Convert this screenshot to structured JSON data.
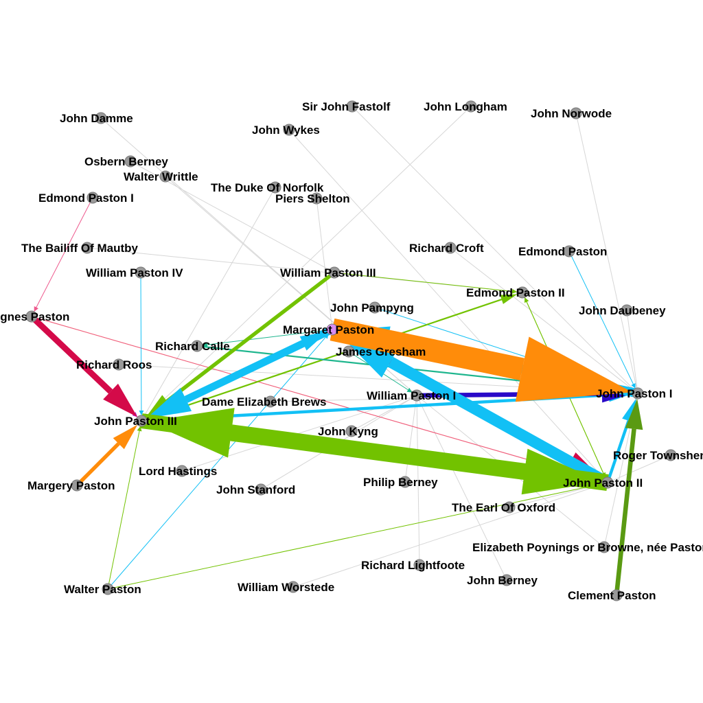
{
  "colors": {
    "node_fill": "#999999",
    "node_stroke": "#777777",
    "label": "#000000",
    "faint_edge": "#d6d6d6",
    "orange": "#ff8c0a",
    "sky": "#12c0f5",
    "green": "#72c200",
    "dark_green": "#5a9a12",
    "crimson": "#d40a49",
    "navy": "#2a0ac8",
    "teal": "#1fb68e",
    "pink": "#ee5a8e",
    "purple": "#b026d8",
    "violet_node": "#d98cf2"
  },
  "nodes": [
    {
      "id": "john_damme",
      "label": "John Damme"
    },
    {
      "id": "osbern_berney",
      "label": "Osbern Berney"
    },
    {
      "id": "walter_writtle",
      "label": "Walter Writtle"
    },
    {
      "id": "duke_norfolk",
      "label": "The Duke Of Norfolk"
    },
    {
      "id": "edmond_paston_i",
      "label": "Edmond Paston I"
    },
    {
      "id": "piers_shelton",
      "label": "Piers Shelton"
    },
    {
      "id": "sir_john_fastolf",
      "label": "Sir John Fastolf"
    },
    {
      "id": "john_longham",
      "label": "John Longham"
    },
    {
      "id": "john_norwode",
      "label": "John Norwode"
    },
    {
      "id": "john_wykes",
      "label": "John Wykes"
    },
    {
      "id": "bailiff_mautby",
      "label": "The Bailiff Of Mautby"
    },
    {
      "id": "richard_croft",
      "label": "Richard Croft"
    },
    {
      "id": "edmond_paston",
      "label": "Edmond Paston"
    },
    {
      "id": "william_paston_iv",
      "label": "William Paston IV"
    },
    {
      "id": "william_paston_iii",
      "label": "William Paston III"
    },
    {
      "id": "edmond_paston_ii",
      "label": "Edmond Paston II"
    },
    {
      "id": "agnes_paston",
      "label": "Agnes Paston"
    },
    {
      "id": "john_pampyng",
      "label": "John Pampyng"
    },
    {
      "id": "john_daubeney",
      "label": "John Daubeney"
    },
    {
      "id": "margaret_paston",
      "label": "Margaret Paston"
    },
    {
      "id": "richard_calle",
      "label": "Richard Calle"
    },
    {
      "id": "james_gresham",
      "label": "James Gresham"
    },
    {
      "id": "richard_roos",
      "label": "Richard Roos"
    },
    {
      "id": "john_paston_i",
      "label": "John Paston I"
    },
    {
      "id": "william_paston_i",
      "label": "William Paston I"
    },
    {
      "id": "dame_elizabeth_brews",
      "label": "Dame Elizabeth Brews"
    },
    {
      "id": "john_paston_iii",
      "label": "John Paston III"
    },
    {
      "id": "john_kyng",
      "label": "John Kyng"
    },
    {
      "id": "roger_townshend",
      "label": "Roger Townshend"
    },
    {
      "id": "lord_hastings",
      "label": "Lord Hastings"
    },
    {
      "id": "margery_paston",
      "label": "Margery Paston"
    },
    {
      "id": "philip_berney",
      "label": "Philip Berney"
    },
    {
      "id": "john_stanford",
      "label": "John Stanford"
    },
    {
      "id": "john_paston_ii",
      "label": "John Paston II"
    },
    {
      "id": "earl_oxford",
      "label": "The Earl Of Oxford"
    },
    {
      "id": "elizabeth_poynings",
      "label": "Elizabeth Poynings or Browne, née Paston"
    },
    {
      "id": "richard_lightfoote",
      "label": "Richard Lightfoote"
    },
    {
      "id": "john_berney",
      "label": "John Berney"
    },
    {
      "id": "walter_paston",
      "label": "Walter Paston"
    },
    {
      "id": "william_worstede",
      "label": "William Worstede"
    },
    {
      "id": "clement_paston",
      "label": "Clement Paston"
    }
  ],
  "edges": [
    {
      "from": "john_damme",
      "to": "william_paston_i",
      "color": "faint_edge",
      "weight": 1
    },
    {
      "from": "osbern_berney",
      "to": "william_paston_iii",
      "color": "faint_edge",
      "weight": 1
    },
    {
      "from": "walter_writtle",
      "to": "william_paston_i",
      "color": "faint_edge",
      "weight": 1
    },
    {
      "from": "duke_norfolk",
      "to": "john_paston_iii",
      "color": "faint_edge",
      "weight": 1
    },
    {
      "from": "piers_shelton",
      "to": "margaret_paston",
      "color": "faint_edge",
      "weight": 1
    },
    {
      "from": "sir_john_fastolf",
      "to": "john_paston_i",
      "color": "faint_edge",
      "weight": 1
    },
    {
      "from": "john_longham",
      "to": "john_paston_iii",
      "color": "faint_edge",
      "weight": 1
    },
    {
      "from": "john_norwode",
      "to": "john_paston_i",
      "color": "faint_edge",
      "weight": 1
    },
    {
      "from": "john_wykes",
      "to": "john_paston_ii",
      "color": "faint_edge",
      "weight": 1
    },
    {
      "from": "bailiff_mautby",
      "to": "edmond_paston_ii",
      "color": "faint_edge",
      "weight": 1
    },
    {
      "from": "richard_croft",
      "to": "john_paston_i",
      "color": "faint_edge",
      "weight": 1
    },
    {
      "from": "edmond_paston",
      "to": "john_paston_i",
      "color": "sky",
      "weight": 1
    },
    {
      "from": "john_daubeney",
      "to": "john_paston_i",
      "color": "faint_edge",
      "weight": 1
    },
    {
      "from": "richard_roos",
      "to": "john_paston_i",
      "color": "faint_edge",
      "weight": 1
    },
    {
      "from": "john_kyng",
      "to": "william_paston_i",
      "color": "faint_edge",
      "weight": 1
    },
    {
      "from": "roger_townshend",
      "to": "john_paston_ii",
      "color": "faint_edge",
      "weight": 1
    },
    {
      "from": "lord_hastings",
      "to": "william_paston_i",
      "color": "faint_edge",
      "weight": 1
    },
    {
      "from": "john_stanford",
      "to": "william_paston_i",
      "color": "faint_edge",
      "weight": 1
    },
    {
      "from": "philip_berney",
      "to": "william_paston_i",
      "color": "faint_edge",
      "weight": 1
    },
    {
      "from": "richard_lightfoote",
      "to": "william_paston_i",
      "color": "faint_edge",
      "weight": 1
    },
    {
      "from": "john_berney",
      "to": "william_paston_i",
      "color": "faint_edge",
      "weight": 1
    },
    {
      "from": "william_worstede",
      "to": "john_paston_ii",
      "color": "faint_edge",
      "weight": 1
    },
    {
      "from": "elizabeth_poynings",
      "to": "william_paston_i",
      "color": "faint_edge",
      "weight": 1
    },
    {
      "from": "elizabeth_poynings",
      "to": "john_paston_i",
      "color": "faint_edge",
      "weight": 1
    },
    {
      "from": "dame_elizabeth_brews",
      "to": "john_paston_i",
      "color": "faint_edge",
      "weight": 1
    },
    {
      "from": "edmond_paston_i",
      "to": "agnes_paston",
      "color": "pink",
      "weight": 1
    },
    {
      "from": "agnes_paston",
      "to": "john_paston_iii",
      "color": "purple",
      "weight": 1
    },
    {
      "from": "agnes_paston",
      "to": "john_paston_ii",
      "color": "orange",
      "weight": 1
    },
    {
      "from": "agnes_paston",
      "to": "john_paston_ii",
      "color": "pink",
      "weight": 1
    },
    {
      "from": "william_paston_iv",
      "to": "john_paston_iii",
      "color": "sky",
      "weight": 1
    },
    {
      "from": "walter_paston",
      "to": "john_paston_iii",
      "color": "green",
      "weight": 1
    },
    {
      "from": "walter_paston",
      "to": "margaret_paston",
      "color": "sky",
      "weight": 1
    },
    {
      "from": "walter_paston",
      "to": "john_paston_ii",
      "color": "green",
      "weight": 1
    },
    {
      "from": "william_paston_iii",
      "to": "edmond_paston_ii",
      "color": "green",
      "weight": 1
    },
    {
      "from": "john_paston_iii",
      "to": "edmond_paston_ii",
      "color": "green",
      "weight": 2
    },
    {
      "from": "edmond_paston_ii",
      "to": "john_paston_ii",
      "color": "green",
      "weight": 1
    },
    {
      "from": "john_paston_ii",
      "to": "edmond_paston_ii",
      "color": "green",
      "weight": 1
    },
    {
      "from": "edmond_paston_ii",
      "to": "james_gresham",
      "color": "green",
      "weight": 1
    },
    {
      "from": "john_pampyng",
      "to": "john_paston_i",
      "color": "sky",
      "weight": 1
    },
    {
      "from": "margaret_paston",
      "to": "richard_calle",
      "color": "teal",
      "weight": 1
    },
    {
      "from": "richard_calle",
      "to": "john_paston_i",
      "color": "teal",
      "weight": 2
    },
    {
      "from": "james_gresham",
      "to": "william_paston_i",
      "color": "teal",
      "weight": 1
    },
    {
      "from": "william_paston_i",
      "to": "john_paston_i",
      "color": "navy",
      "weight": 6
    },
    {
      "from": "margaret_paston",
      "to": "john_paston_i",
      "color": "orange",
      "weight": 30
    },
    {
      "from": "agnes_paston",
      "to": "john_paston_iii",
      "color": "crimson",
      "weight": 8
    },
    {
      "from": "margaret_paston",
      "to": "john_paston_ii",
      "color": "crimson",
      "weight": 8
    },
    {
      "from": "william_paston_iii",
      "to": "john_paston_iii",
      "color": "green",
      "weight": 5
    },
    {
      "from": "john_paston_i",
      "to": "margaret_paston",
      "color": "sky",
      "weight": 12
    },
    {
      "from": "margaret_paston",
      "to": "john_paston_iii",
      "color": "sky",
      "weight": 10
    },
    {
      "from": "john_paston_iii",
      "to": "margaret_paston",
      "color": "sky",
      "weight": 5
    },
    {
      "from": "john_paston_ii",
      "to": "margaret_paston",
      "color": "sky",
      "weight": 15
    },
    {
      "from": "john_paston_iii",
      "to": "john_paston_i",
      "color": "sky",
      "weight": 4
    },
    {
      "from": "john_paston_ii",
      "to": "john_paston_i",
      "color": "sky",
      "weight": 4
    },
    {
      "from": "john_paston_ii",
      "to": "john_paston_iii",
      "color": "green",
      "weight": 22
    },
    {
      "from": "john_paston_iii",
      "to": "john_paston_ii",
      "color": "green",
      "weight": 20
    },
    {
      "from": "clement_paston",
      "to": "john_paston_i",
      "color": "dark_green",
      "weight": 6
    },
    {
      "from": "margery_paston",
      "to": "john_paston_iii",
      "color": "orange",
      "weight": 5
    },
    {
      "from": "earl_oxford",
      "to": "john_paston_ii",
      "color": "faint_edge",
      "weight": 1
    }
  ]
}
